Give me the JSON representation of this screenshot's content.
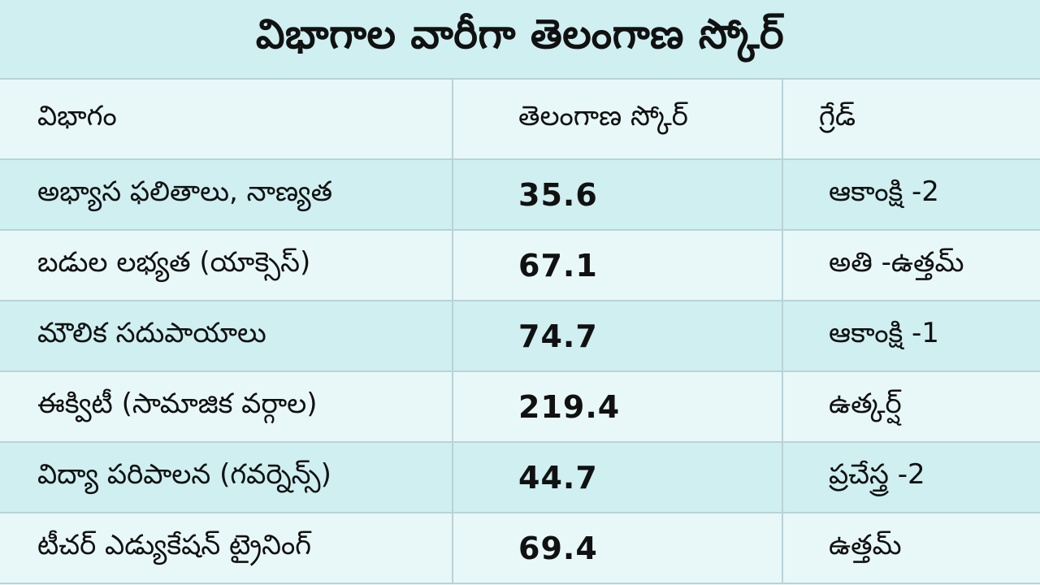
{
  "title": "విభాగాల వారీగా తెలంగాణ స్కోర్",
  "table": {
    "headers": [
      "విభాగం",
      "తెలంగాణ స్కోర్",
      "గ్రేడ్"
    ],
    "rows": [
      {
        "category": "అభ్యాస ఫలితాలు, నాణ్యత",
        "score": "35.6",
        "grade": "ఆకాంక్షి -2"
      },
      {
        "category": "బడుల లభ్యత (యాక్సెస్)",
        "score": "67.1",
        "grade": "అతి -ఉత్తమ్"
      },
      {
        "category": "మౌలిక సదుపాయాలు",
        "score": "74.7",
        "grade": "ఆకాంక్షి -1"
      },
      {
        "category": "ఈక్విటీ (సామాజిక వర్గాల)",
        "score": "219.4",
        "grade": "ఉత్కర్ష్"
      },
      {
        "category": "విద్యా పరిపాలన (గవర్నెన్స్)",
        "score": "44.7",
        "grade": "ప్రచేస్త్ర -2"
      },
      {
        "category": "టీచర్ ఎడ్యుకేషన్ ట్రైనింగ్",
        "score": "69.4",
        "grade": "ఉత్తమ్"
      }
    ]
  }
}
